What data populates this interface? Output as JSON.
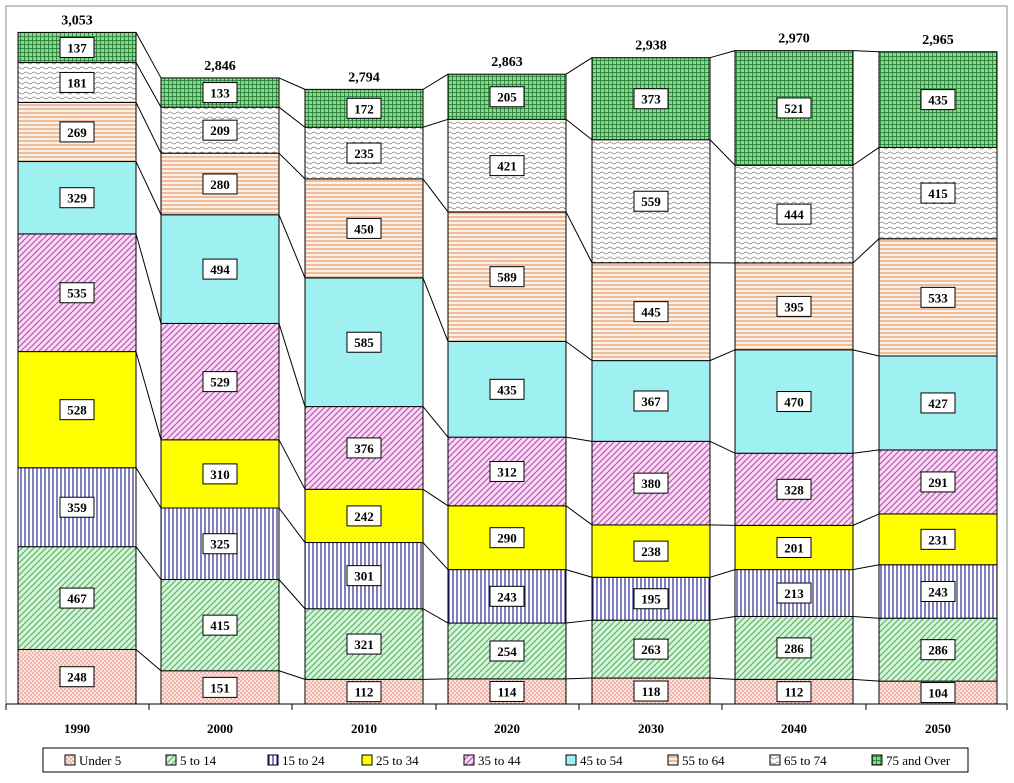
{
  "chart_data": {
    "type": "bar",
    "stacked": true,
    "title": "",
    "xlabel": "",
    "ylabel": "",
    "categories": [
      "1990",
      "2000",
      "2010",
      "2020",
      "2030",
      "2040",
      "2050"
    ],
    "totals": [
      "3,053",
      "2,846",
      "2,794",
      "2,863",
      "2,938",
      "2,970",
      "2,965"
    ],
    "series": [
      {
        "name": "Under 5",
        "color": "#fbe4dc",
        "pattern": "dots",
        "values": [
          248,
          151,
          112,
          114,
          118,
          112,
          104
        ]
      },
      {
        "name": "5 to 14",
        "color": "#c6efce",
        "pattern": "diagonal",
        "values": [
          467,
          415,
          321,
          254,
          263,
          286,
          286
        ]
      },
      {
        "name": "15 to 24",
        "color": "#ffffff",
        "pattern": "vertical",
        "values": [
          359,
          325,
          301,
          243,
          195,
          213,
          243
        ]
      },
      {
        "name": "25 to 34",
        "color": "#ffff00",
        "pattern": "solid",
        "values": [
          528,
          310,
          242,
          290,
          238,
          201,
          231
        ]
      },
      {
        "name": "35 to 44",
        "color": "#f4c7ee",
        "pattern": "diagonal",
        "values": [
          535,
          529,
          376,
          312,
          380,
          328,
          291
        ]
      },
      {
        "name": "45 to 54",
        "color": "#9ff0f0",
        "pattern": "solid",
        "values": [
          329,
          494,
          585,
          435,
          367,
          470,
          427
        ]
      },
      {
        "name": "55 to 64",
        "color": "#fde9d9",
        "pattern": "horizontal",
        "values": [
          269,
          280,
          450,
          589,
          445,
          395,
          533
        ]
      },
      {
        "name": "65 to 74",
        "color": "#f2f2f2",
        "pattern": "wave",
        "values": [
          181,
          209,
          235,
          421,
          559,
          444,
          415
        ]
      },
      {
        "name": "75 and Over",
        "color": "#8fd48f",
        "pattern": "grid",
        "values": [
          137,
          133,
          172,
          205,
          373,
          521,
          435
        ]
      }
    ],
    "ylim": [
      0,
      3150
    ],
    "grid": false,
    "legend_position": "bottom"
  }
}
